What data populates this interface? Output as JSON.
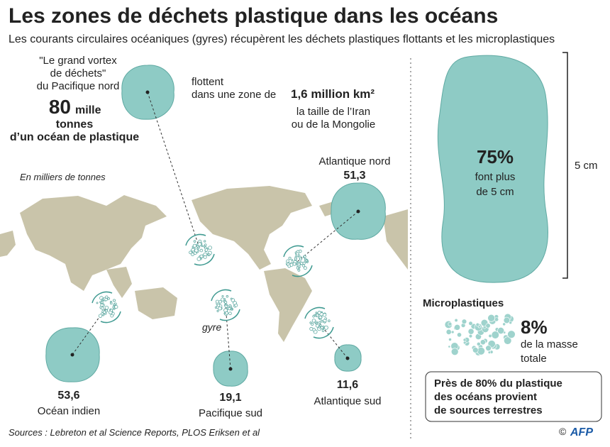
{
  "header": {
    "title": "Les zones de déchets plastique dans les océans",
    "subtitle": "Les courants circulaires océaniques  (gyres) récupèrent les déchets plastiques flottants et les microplastiques"
  },
  "pacific_north": {
    "name_lines": [
      "\"Le grand vortex",
      "de déchets\"",
      "du Pacifique nord"
    ],
    "value": "80",
    "unit": "mille",
    "unit_lines": [
      "tonnes",
      "d’un océan de plastique"
    ]
  },
  "area": {
    "line1": "flottent",
    "line2": "dans une zone de",
    "size": "1,6 million km²",
    "line3": "la taille de l’Iran",
    "line4": "ou de la Mongolie"
  },
  "unit_note": "En milliers de tonnes",
  "gyre_label": "gyre",
  "zones": [
    {
      "name": "Atlantique nord",
      "value": "51,3"
    },
    {
      "name": "Océan indien",
      "value": "53,6"
    },
    {
      "name": "Pacifique sud",
      "value": "19,1"
    },
    {
      "name": "Atlantique sud",
      "value": "11,6"
    }
  ],
  "large": {
    "value": "75%",
    "lines": [
      "font plus",
      "de 5 cm"
    ],
    "scale": "5 cm"
  },
  "micro": {
    "title": "Microplastiques",
    "value": "8%",
    "lines": [
      "de la masse",
      "totale"
    ]
  },
  "note": [
    "Près de 80% du plastique",
    "des océans provient",
    "de sources terrestres"
  ],
  "footer": {
    "sources": "Sources : Lebreton et al Science Reports, PLOS Eriksen et al",
    "copyright": "©",
    "agency": "AFP"
  }
}
